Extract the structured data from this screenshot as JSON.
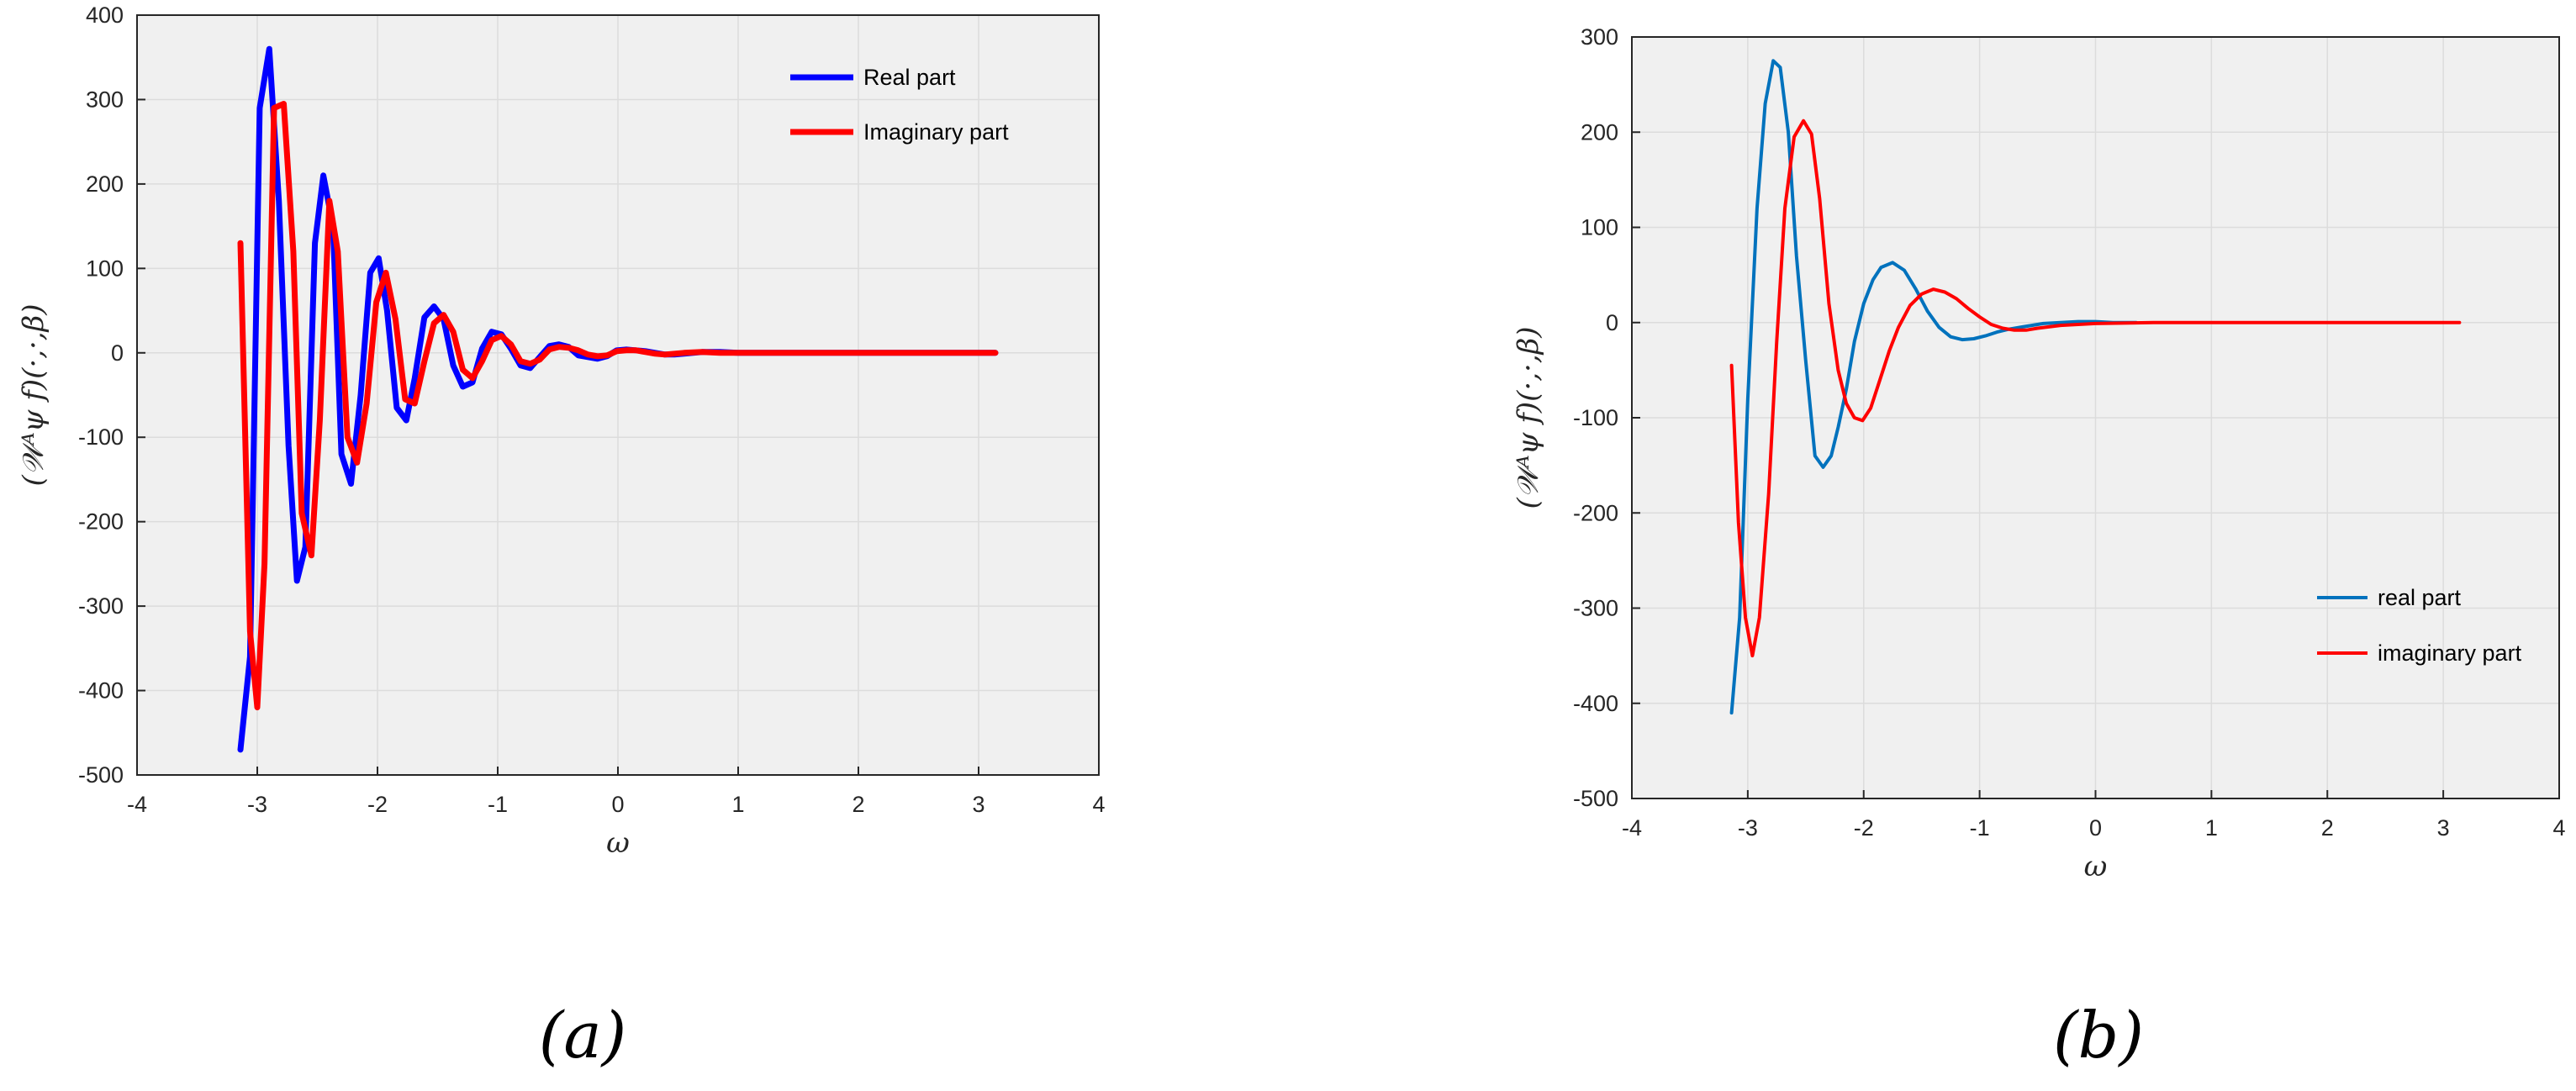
{
  "chart_data": [
    {
      "type": "line",
      "caption": "(a)",
      "xlabel": "ω",
      "ylabel": "(𝒲ᴬψ f)(·,·,β)",
      "xlim": [
        -4,
        4
      ],
      "ylim": [
        -500,
        400
      ],
      "xticks": [
        "-4",
        "-3",
        "-2",
        "-1",
        "0",
        "1",
        "2",
        "3",
        "4"
      ],
      "yticks": [
        "-500",
        "-400",
        "-300",
        "-200",
        "-100",
        "0",
        "100",
        "200",
        "300",
        "400"
      ],
      "grid": true,
      "legend_position": "top-right",
      "series": [
        {
          "name": "Real part",
          "color": "#0000ff",
          "x": [
            -3.14,
            -3.06,
            -2.98,
            -2.9,
            -2.82,
            -2.74,
            -2.67,
            -2.6,
            -2.52,
            -2.45,
            -2.37,
            -2.3,
            -2.22,
            -2.14,
            -2.06,
            -1.99,
            -1.92,
            -1.84,
            -1.76,
            -1.69,
            -1.61,
            -1.53,
            -1.45,
            -1.37,
            -1.29,
            -1.21,
            -1.13,
            -1.05,
            -0.97,
            -0.89,
            -0.81,
            -0.73,
            -0.65,
            -0.57,
            -0.49,
            -0.41,
            -0.33,
            -0.25,
            -0.17,
            -0.09,
            -0.01,
            0.07,
            0.15,
            0.23,
            0.31,
            0.39,
            0.47,
            0.55,
            0.7,
            0.85,
            1.0,
            1.2,
            1.4,
            1.6,
            1.8,
            2.0,
            2.2,
            2.4,
            2.6,
            2.8,
            3.0,
            3.14
          ],
          "y": [
            -470,
            -360,
            290,
            360,
            180,
            -110,
            -270,
            -230,
            130,
            210,
            150,
            -120,
            -155,
            -50,
            95,
            112,
            50,
            -65,
            -80,
            -30,
            42,
            55,
            40,
            -15,
            -40,
            -35,
            5,
            25,
            22,
            5,
            -15,
            -18,
            -5,
            8,
            10,
            7,
            -3,
            -5,
            -7,
            -4,
            3,
            4,
            3,
            2,
            0,
            -2,
            -2,
            -1,
            1,
            1,
            0,
            0,
            0,
            0,
            0,
            0,
            0,
            0,
            0,
            0,
            0,
            0
          ]
        },
        {
          "name": "Imaginary part",
          "color": "#ff0000",
          "x": [
            -3.14,
            -3.06,
            -3.0,
            -2.94,
            -2.86,
            -2.78,
            -2.7,
            -2.63,
            -2.55,
            -2.48,
            -2.4,
            -2.33,
            -2.25,
            -2.17,
            -2.09,
            -2.01,
            -1.93,
            -1.85,
            -1.77,
            -1.69,
            -1.61,
            -1.53,
            -1.45,
            -1.37,
            -1.29,
            -1.21,
            -1.13,
            -1.05,
            -0.97,
            -0.89,
            -0.81,
            -0.73,
            -0.65,
            -0.57,
            -0.49,
            -0.41,
            -0.33,
            -0.25,
            -0.17,
            -0.09,
            -0.01,
            0.07,
            0.15,
            0.23,
            0.31,
            0.39,
            0.47,
            0.55,
            0.7,
            0.85,
            1.0,
            1.2,
            1.4,
            1.6,
            1.8,
            2.0,
            2.2,
            2.4,
            2.6,
            2.8,
            3.0,
            3.14
          ],
          "y": [
            130,
            -330,
            -420,
            -250,
            290,
            295,
            120,
            -190,
            -240,
            -80,
            180,
            120,
            -100,
            -130,
            -60,
            60,
            95,
            40,
            -55,
            -60,
            -10,
            35,
            45,
            25,
            -20,
            -30,
            -10,
            15,
            20,
            10,
            -10,
            -13,
            -8,
            4,
            7,
            6,
            3,
            -2,
            -4,
            -3,
            2,
            3,
            3,
            1,
            -1,
            -2,
            -1,
            0,
            1,
            0,
            0,
            0,
            0,
            0,
            0,
            0,
            0,
            0,
            0,
            0,
            0,
            0
          ]
        }
      ]
    },
    {
      "type": "line",
      "caption": "(b)",
      "xlabel": "ω",
      "ylabel": "(𝒲ᴬψ f)(·,·,β)",
      "xlim": [
        -4,
        4
      ],
      "ylim": [
        -500,
        300
      ],
      "xticks": [
        "-4",
        "-3",
        "-2",
        "-1",
        "0",
        "1",
        "2",
        "3",
        "4"
      ],
      "yticks": [
        "-500",
        "-400",
        "-300",
        "-200",
        "-100",
        "0",
        "100",
        "200",
        "300"
      ],
      "grid": true,
      "legend_position": "bottom-right",
      "series": [
        {
          "name": "real part",
          "color": "#0072bd",
          "x": [
            -3.14,
            -3.07,
            -3.0,
            -2.92,
            -2.85,
            -2.78,
            -2.72,
            -2.65,
            -2.58,
            -2.5,
            -2.42,
            -2.35,
            -2.28,
            -2.22,
            -2.15,
            -2.08,
            -2.0,
            -1.92,
            -1.85,
            -1.75,
            -1.65,
            -1.55,
            -1.45,
            -1.35,
            -1.25,
            -1.15,
            -1.05,
            -0.95,
            -0.85,
            -0.75,
            -0.65,
            -0.55,
            -0.45,
            -0.3,
            -0.15,
            0.0,
            0.15,
            0.3,
            0.35
          ],
          "y": [
            -410,
            -310,
            -80,
            120,
            230,
            275,
            268,
            200,
            70,
            -40,
            -140,
            -152,
            -140,
            -110,
            -70,
            -20,
            20,
            45,
            58,
            63,
            55,
            35,
            12,
            -5,
            -15,
            -18,
            -17,
            -14,
            -10,
            -7,
            -5,
            -3,
            -1,
            0,
            1,
            1,
            0,
            0,
            0
          ]
        },
        {
          "name": "imaginary part",
          "color": "#ff0000",
          "x": [
            -3.14,
            -3.08,
            -3.02,
            -2.96,
            -2.9,
            -2.82,
            -2.75,
            -2.68,
            -2.6,
            -2.52,
            -2.45,
            -2.38,
            -2.3,
            -2.22,
            -2.15,
            -2.08,
            -2.01,
            -1.94,
            -1.86,
            -1.78,
            -1.7,
            -1.6,
            -1.5,
            -1.4,
            -1.3,
            -1.2,
            -1.1,
            -1.0,
            -0.9,
            -0.8,
            -0.7,
            -0.6,
            -0.5,
            -0.3,
            0.0,
            0.5,
            1.0,
            1.5,
            2.0,
            2.5,
            3.0,
            3.14
          ],
          "y": [
            -45,
            -210,
            -310,
            -350,
            -310,
            -180,
            -20,
            120,
            195,
            212,
            198,
            130,
            20,
            -50,
            -85,
            -100,
            -103,
            -90,
            -60,
            -30,
            -5,
            18,
            30,
            35,
            32,
            25,
            15,
            6,
            -2,
            -6,
            -8,
            -8,
            -6,
            -3,
            -1,
            0,
            0,
            0,
            0,
            0,
            0,
            0
          ]
        }
      ]
    }
  ]
}
